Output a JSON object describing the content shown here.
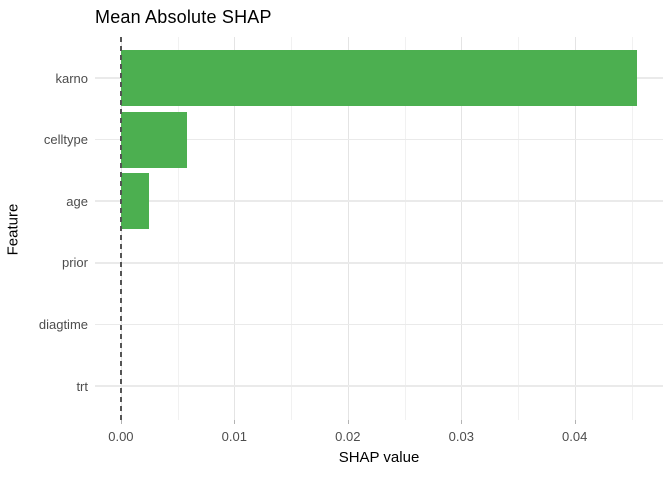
{
  "chart_data": {
    "type": "bar",
    "orientation": "horizontal",
    "title": "Mean Absolute SHAP",
    "xlabel": "SHAP value",
    "ylabel": "Feature",
    "categories": [
      "karno",
      "celltype",
      "age",
      "prior",
      "diagtime",
      "trt"
    ],
    "values": [
      0.0455,
      0.0058,
      0.0025,
      0,
      0,
      0
    ],
    "x_tick_labels": [
      "0.00",
      "0.01",
      "0.02",
      "0.03",
      "0.04"
    ],
    "x_tick_values": [
      0,
      0.01,
      0.02,
      0.03,
      0.04
    ],
    "x_minor_tick_values": [
      0.005,
      0.015,
      0.025,
      0.035,
      0.045
    ],
    "xlim": [
      -0.00228,
      0.04778
    ],
    "bar_color": "#4CAF50",
    "zero_line": {
      "x": 0,
      "style": "dashed",
      "color": "#545454"
    },
    "grid": true,
    "legend": "none",
    "background": "#ffffff"
  }
}
